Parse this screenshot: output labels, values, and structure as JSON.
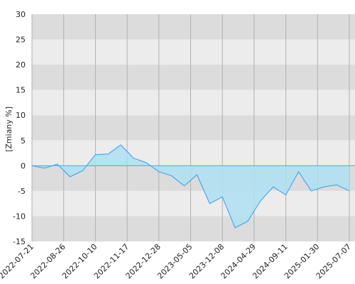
{
  "chart_data": {
    "type": "area",
    "ylabel": "[Zmiany %]",
    "xlabel": "",
    "title": "",
    "ylim": [
      -15,
      30
    ],
    "yticks": [
      -15,
      -10,
      -5,
      0,
      5,
      10,
      15,
      20,
      25,
      30
    ],
    "xticks": [
      "2022-07-21",
      "2022-08-26",
      "2022-10-10",
      "2022-11-17",
      "2022-12-28",
      "2023-05-05",
      "2023-12-08",
      "2024-04-29",
      "2024-09-11",
      "2025-01-30",
      "2025-07-07"
    ],
    "grid": true,
    "band_colors": [
      "#dcdcdc",
      "#ececec"
    ],
    "line_color": "#4da6f0",
    "fill_color": "#aee0f2",
    "series": [
      {
        "x": [
          0.0,
          0.4,
          0.8,
          1.2,
          1.6,
          2.0,
          2.4,
          2.8,
          3.2,
          3.6,
          4.0,
          4.4,
          4.8,
          5.2,
          5.6,
          6.0,
          6.4,
          6.8,
          7.2,
          7.6,
          8.0,
          8.4,
          8.8,
          9.2,
          9.6,
          10.0
        ],
        "values": [
          0.0,
          -0.5,
          0.3,
          -2.2,
          -1.0,
          2.2,
          2.3,
          4.1,
          1.5,
          0.6,
          -1.2,
          -2.0,
          -4.0,
          -1.8,
          -7.5,
          -6.2,
          -12.3,
          -11.0,
          -7.0,
          -4.2,
          -5.8,
          -1.2,
          -5.0,
          -4.2,
          -3.8,
          -5.0
        ]
      }
    ]
  }
}
